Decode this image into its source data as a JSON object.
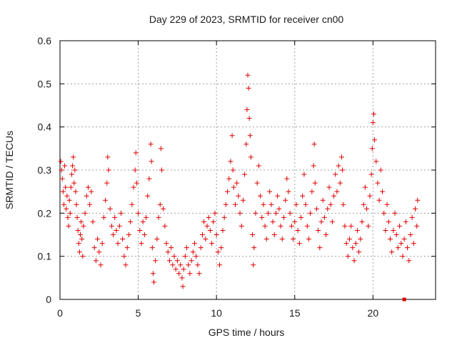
{
  "chart_data": {
    "type": "scatter",
    "title": "Day 229 of 2023, SRMTID for receiver cn00",
    "xlabel": "GPS time / hours",
    "ylabel": "SRMTID / TECUs",
    "xlim": [
      0,
      24
    ],
    "ylim": [
      0,
      0.6
    ],
    "x_ticks": [
      0,
      5,
      10,
      15,
      20
    ],
    "x_tick_labels": [
      "0",
      "5",
      "10",
      "15",
      "20"
    ],
    "y_ticks": [
      0,
      0.1,
      0.2,
      0.3,
      0.4,
      0.5,
      0.6
    ],
    "y_tick_labels": [
      "0",
      "0.1",
      "0.2",
      "0.3",
      "0.4",
      "0.5",
      "0.6"
    ],
    "grid": true,
    "marker": "plus",
    "color": "#e00000",
    "series": [
      {
        "name": "SRMTID",
        "points": [
          [
            0.05,
            0.32
          ],
          [
            0.1,
            0.3
          ],
          [
            0.15,
            0.28
          ],
          [
            0.2,
            0.25
          ],
          [
            0.25,
            0.22
          ],
          [
            0.3,
            0.31
          ],
          [
            0.35,
            0.26
          ],
          [
            0.4,
            0.21
          ],
          [
            0.45,
            0.24
          ],
          [
            0.5,
            0.19
          ],
          [
            0.55,
            0.17
          ],
          [
            0.6,
            0.23
          ],
          [
            0.65,
            0.2
          ],
          [
            0.7,
            0.26
          ],
          [
            0.75,
            0.29
          ],
          [
            0.8,
            0.31
          ],
          [
            0.85,
            0.33
          ],
          [
            0.9,
            0.27
          ],
          [
            0.95,
            0.3
          ],
          [
            1.0,
            0.25
          ],
          [
            1.05,
            0.22
          ],
          [
            1.1,
            0.19
          ],
          [
            1.15,
            0.16
          ],
          [
            1.2,
            0.13
          ],
          [
            1.25,
            0.11
          ],
          [
            1.3,
            0.15
          ],
          [
            1.35,
            0.18
          ],
          [
            1.4,
            0.14
          ],
          [
            1.45,
            0.1
          ],
          [
            1.5,
            0.17
          ],
          [
            1.6,
            0.2
          ],
          [
            1.7,
            0.24
          ],
          [
            1.8,
            0.26
          ],
          [
            1.9,
            0.22
          ],
          [
            2.0,
            0.25
          ],
          [
            2.1,
            0.18
          ],
          [
            2.2,
            0.12
          ],
          [
            2.3,
            0.09
          ],
          [
            2.4,
            0.14
          ],
          [
            2.5,
            0.11
          ],
          [
            2.6,
            0.08
          ],
          [
            2.7,
            0.13
          ],
          [
            2.8,
            0.19
          ],
          [
            2.9,
            0.23
          ],
          [
            3.0,
            0.27
          ],
          [
            3.05,
            0.33
          ],
          [
            3.1,
            0.3
          ],
          [
            3.2,
            0.21
          ],
          [
            3.3,
            0.17
          ],
          [
            3.4,
            0.15
          ],
          [
            3.5,
            0.19
          ],
          [
            3.6,
            0.16
          ],
          [
            3.7,
            0.13
          ],
          [
            3.8,
            0.17
          ],
          [
            3.9,
            0.2
          ],
          [
            4.0,
            0.14
          ],
          [
            4.1,
            0.1
          ],
          [
            4.2,
            0.08
          ],
          [
            4.3,
            0.12
          ],
          [
            4.4,
            0.15
          ],
          [
            4.5,
            0.18
          ],
          [
            4.6,
            0.22
          ],
          [
            4.7,
            0.26
          ],
          [
            4.8,
            0.3
          ],
          [
            4.85,
            0.34
          ],
          [
            4.9,
            0.27
          ],
          [
            5.0,
            0.2
          ],
          [
            5.1,
            0.16
          ],
          [
            5.2,
            0.13
          ],
          [
            5.3,
            0.18
          ],
          [
            5.4,
            0.15
          ],
          [
            5.5,
            0.19
          ],
          [
            5.6,
            0.24
          ],
          [
            5.7,
            0.28
          ],
          [
            5.8,
            0.36
          ],
          [
            5.85,
            0.32
          ],
          [
            5.9,
            0.12
          ],
          [
            5.95,
            0.06
          ],
          [
            6.0,
            0.04
          ],
          [
            6.1,
            0.09
          ],
          [
            6.2,
            0.14
          ],
          [
            6.3,
            0.19
          ],
          [
            6.4,
            0.22
          ],
          [
            6.45,
            0.35
          ],
          [
            6.5,
            0.3
          ],
          [
            6.6,
            0.21
          ],
          [
            6.7,
            0.17
          ],
          [
            6.8,
            0.13
          ],
          [
            6.9,
            0.11
          ],
          [
            7.0,
            0.09
          ],
          [
            7.1,
            0.12
          ],
          [
            7.2,
            0.08
          ],
          [
            7.3,
            0.1
          ],
          [
            7.4,
            0.07
          ],
          [
            7.5,
            0.09
          ],
          [
            7.6,
            0.06
          ],
          [
            7.7,
            0.08
          ],
          [
            7.8,
            0.05
          ],
          [
            7.85,
            0.03
          ],
          [
            7.9,
            0.07
          ],
          [
            8.0,
            0.1
          ],
          [
            8.1,
            0.12
          ],
          [
            8.2,
            0.08
          ],
          [
            8.3,
            0.06
          ],
          [
            8.4,
            0.09
          ],
          [
            8.5,
            0.11
          ],
          [
            8.6,
            0.13
          ],
          [
            8.7,
            0.1
          ],
          [
            8.8,
            0.08
          ],
          [
            8.9,
            0.06
          ],
          [
            9.0,
            0.12
          ],
          [
            9.1,
            0.15
          ],
          [
            9.2,
            0.18
          ],
          [
            9.3,
            0.14
          ],
          [
            9.4,
            0.17
          ],
          [
            9.5,
            0.19
          ],
          [
            9.6,
            0.16
          ],
          [
            9.7,
            0.13
          ],
          [
            9.8,
            0.18
          ],
          [
            9.9,
            0.2
          ],
          [
            10.0,
            0.15
          ],
          [
            10.1,
            0.11
          ],
          [
            10.2,
            0.08
          ],
          [
            10.3,
            0.12
          ],
          [
            10.4,
            0.16
          ],
          [
            10.5,
            0.19
          ],
          [
            10.6,
            0.22
          ],
          [
            10.7,
            0.25
          ],
          [
            10.8,
            0.28
          ],
          [
            10.9,
            0.32
          ],
          [
            11.0,
            0.38
          ],
          [
            11.05,
            0.3
          ],
          [
            11.1,
            0.26
          ],
          [
            11.2,
            0.22
          ],
          [
            11.3,
            0.27
          ],
          [
            11.4,
            0.24
          ],
          [
            11.5,
            0.2
          ],
          [
            11.6,
            0.17
          ],
          [
            11.7,
            0.23
          ],
          [
            11.8,
            0.29
          ],
          [
            11.9,
            0.36
          ],
          [
            11.95,
            0.44
          ],
          [
            12.0,
            0.52
          ],
          [
            12.05,
            0.49
          ],
          [
            12.1,
            0.42
          ],
          [
            12.15,
            0.38
          ],
          [
            12.2,
            0.33
          ],
          [
            12.3,
            0.15
          ],
          [
            12.35,
            0.08
          ],
          [
            12.4,
            0.12
          ],
          [
            12.5,
            0.2
          ],
          [
            12.6,
            0.27
          ],
          [
            12.7,
            0.31
          ],
          [
            12.8,
            0.24
          ],
          [
            12.9,
            0.19
          ],
          [
            13.0,
            0.22
          ],
          [
            13.1,
            0.17
          ],
          [
            13.2,
            0.14
          ],
          [
            13.3,
            0.2
          ],
          [
            13.4,
            0.25
          ],
          [
            13.5,
            0.22
          ],
          [
            13.6,
            0.18
          ],
          [
            13.7,
            0.15
          ],
          [
            13.8,
            0.2
          ],
          [
            13.9,
            0.24
          ],
          [
            14.0,
            0.21
          ],
          [
            14.1,
            0.17
          ],
          [
            14.2,
            0.14
          ],
          [
            14.3,
            0.19
          ],
          [
            14.4,
            0.23
          ],
          [
            14.5,
            0.28
          ],
          [
            14.6,
            0.25
          ],
          [
            14.7,
            0.2
          ],
          [
            14.8,
            0.17
          ],
          [
            14.9,
            0.14
          ],
          [
            15.0,
            0.18
          ],
          [
            15.1,
            0.22
          ],
          [
            15.2,
            0.16
          ],
          [
            15.3,
            0.13
          ],
          [
            15.4,
            0.19
          ],
          [
            15.5,
            0.24
          ],
          [
            15.6,
            0.29
          ],
          [
            15.7,
            0.22
          ],
          [
            15.8,
            0.17
          ],
          [
            15.9,
            0.14
          ],
          [
            16.0,
            0.2
          ],
          [
            16.1,
            0.25
          ],
          [
            16.2,
            0.31
          ],
          [
            16.25,
            0.36
          ],
          [
            16.3,
            0.27
          ],
          [
            16.4,
            0.21
          ],
          [
            16.5,
            0.16
          ],
          [
            16.6,
            0.12
          ],
          [
            16.7,
            0.18
          ],
          [
            16.8,
            0.23
          ],
          [
            16.9,
            0.19
          ],
          [
            17.0,
            0.15
          ],
          [
            17.1,
            0.21
          ],
          [
            17.2,
            0.26
          ],
          [
            17.3,
            0.22
          ],
          [
            17.4,
            0.18
          ],
          [
            17.5,
            0.24
          ],
          [
            17.6,
            0.29
          ],
          [
            17.7,
            0.25
          ],
          [
            17.8,
            0.31
          ],
          [
            17.9,
            0.27
          ],
          [
            18.0,
            0.33
          ],
          [
            18.05,
            0.3
          ],
          [
            18.1,
            0.22
          ],
          [
            18.2,
            0.17
          ],
          [
            18.3,
            0.13
          ],
          [
            18.4,
            0.1
          ],
          [
            18.5,
            0.14
          ],
          [
            18.6,
            0.17
          ],
          [
            18.7,
            0.12
          ],
          [
            18.8,
            0.09
          ],
          [
            18.9,
            0.13
          ],
          [
            19.0,
            0.16
          ],
          [
            19.1,
            0.11
          ],
          [
            19.2,
            0.14
          ],
          [
            19.3,
            0.18
          ],
          [
            19.4,
            0.22
          ],
          [
            19.5,
            0.26
          ],
          [
            19.6,
            0.21
          ],
          [
            19.7,
            0.17
          ],
          [
            19.8,
            0.24
          ],
          [
            19.9,
            0.29
          ],
          [
            19.95,
            0.35
          ],
          [
            20.0,
            0.41
          ],
          [
            20.05,
            0.43
          ],
          [
            20.1,
            0.37
          ],
          [
            20.2,
            0.32
          ],
          [
            20.3,
            0.27
          ],
          [
            20.4,
            0.23
          ],
          [
            20.5,
            0.3
          ],
          [
            20.6,
            0.25
          ],
          [
            20.7,
            0.2
          ],
          [
            20.8,
            0.16
          ],
          [
            20.9,
            0.22
          ],
          [
            21.0,
            0.18
          ],
          [
            21.1,
            0.14
          ],
          [
            21.2,
            0.11
          ],
          [
            21.3,
            0.16
          ],
          [
            21.4,
            0.2
          ],
          [
            21.5,
            0.15
          ],
          [
            21.6,
            0.12
          ],
          [
            21.7,
            0.17
          ],
          [
            21.8,
            0.13
          ],
          [
            21.9,
            0.1
          ],
          [
            22.0,
            0.14
          ],
          [
            22.1,
            0.18
          ],
          [
            22.2,
            0.12
          ],
          [
            22.3,
            0.09
          ],
          [
            22.4,
            0.15
          ],
          [
            22.5,
            0.19
          ],
          [
            22.6,
            0.13
          ],
          [
            22.7,
            0.21
          ],
          [
            22.8,
            0.17
          ],
          [
            22.85,
            0.23
          ]
        ]
      }
    ],
    "marker_square_at": [
      22.0,
      0.0
    ]
  }
}
